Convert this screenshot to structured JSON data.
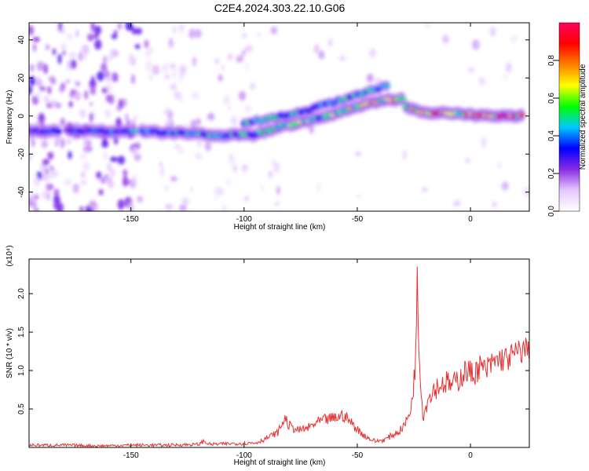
{
  "figure_title": "C2E4.2024.303.22.10.G06",
  "chart_data": [
    {
      "type": "heatmap",
      "title": "C2E4.2024.303.22.10.G06",
      "xlabel": "Height of straight line (km)",
      "ylabel": "Frequency (Hz)",
      "xlim": [
        -195,
        26
      ],
      "ylim": [
        -50,
        49
      ],
      "xticks": [
        -150,
        -100,
        -50,
        0
      ],
      "yticks": [
        -40,
        -20,
        0,
        20,
        40
      ],
      "grid": false,
      "colorbar": {
        "label": "Normalized spectral amplitude",
        "range": [
          0,
          1
        ],
        "ticks": [
          "0.0",
          "0.2",
          "0.4",
          "0.6",
          "0.8"
        ],
        "colors": [
          "#ffffff",
          "#e6c8ff",
          "#8a2be2",
          "#0000ff",
          "#00c8ff",
          "#00ff00",
          "#ffff00",
          "#ff8000",
          "#ff0000",
          "#ff0060"
        ]
      },
      "ridge": [
        {
          "x": -195,
          "y": -8,
          "amp": 0.35
        },
        {
          "x": -175,
          "y": -8,
          "amp": 0.35
        },
        {
          "x": -145,
          "y": -8,
          "amp": 0.45
        },
        {
          "x": -130,
          "y": -9,
          "amp": 0.5
        },
        {
          "x": -110,
          "y": -10,
          "amp": 0.55
        },
        {
          "x": -95,
          "y": -10,
          "amp": 0.5
        },
        {
          "x": -85,
          "y": -6,
          "amp": 0.55
        },
        {
          "x": -70,
          "y": -2,
          "amp": 0.6
        },
        {
          "x": -55,
          "y": 3,
          "amp": 0.65
        },
        {
          "x": -40,
          "y": 8,
          "amp": 0.7
        },
        {
          "x": -30,
          "y": 9,
          "amp": 0.8
        },
        {
          "x": -28,
          "y": 4,
          "amp": 0.6
        },
        {
          "x": -20,
          "y": 2,
          "amp": 0.9
        },
        {
          "x": -5,
          "y": 1,
          "amp": 0.8
        },
        {
          "x": 10,
          "y": 0,
          "amp": 0.85
        },
        {
          "x": 26,
          "y": 0,
          "amp": 0.9
        }
      ],
      "upper_branch": [
        {
          "x": -100,
          "y": -4
        },
        {
          "x": -75,
          "y": 2
        },
        {
          "x": -55,
          "y": 9
        },
        {
          "x": -45,
          "y": 13
        },
        {
          "x": -35,
          "y": 17
        }
      ]
    },
    {
      "type": "line",
      "xlabel": "Height of straight line (km)",
      "ylabel": "SNR (10 * v/v)",
      "y_multiplier": "(x10⁴)",
      "xlim": [
        -195,
        26
      ],
      "ylim": [
        0,
        2.45
      ],
      "xticks": [
        -150,
        -100,
        -50,
        0
      ],
      "yticks": [
        "0.5",
        "1.0",
        "1.5",
        "2.0"
      ],
      "grid": false,
      "series": [
        {
          "color": "#e83030",
          "x": [
            -195,
            -180,
            -165,
            -150,
            -135,
            -120,
            -118,
            -115,
            -105,
            -95,
            -90,
            -85,
            -82,
            -80,
            -76,
            -72,
            -68,
            -64,
            -60,
            -56,
            -52,
            -48,
            -45,
            -42,
            -38,
            -35,
            -31,
            -28,
            -26,
            -25,
            -24,
            -23.5,
            -23,
            -22,
            -21,
            -19,
            -17,
            -14,
            -11,
            -8,
            -5,
            -2,
            1,
            4,
            7,
            10,
            13,
            16,
            19,
            22,
            26
          ],
          "y": [
            0.03,
            0.03,
            0.02,
            0.03,
            0.03,
            0.04,
            0.08,
            0.04,
            0.05,
            0.06,
            0.12,
            0.2,
            0.38,
            0.28,
            0.22,
            0.25,
            0.32,
            0.36,
            0.38,
            0.42,
            0.3,
            0.18,
            0.12,
            0.08,
            0.1,
            0.15,
            0.22,
            0.35,
            0.55,
            0.9,
            1.2,
            2.4,
            1.5,
            0.9,
            0.4,
            0.6,
            0.75,
            0.8,
            0.85,
            0.8,
            0.9,
            1.0,
            0.95,
            1.05,
            1.0,
            1.1,
            1.15,
            1.15,
            1.2,
            1.25,
            1.3
          ]
        }
      ]
    }
  ]
}
